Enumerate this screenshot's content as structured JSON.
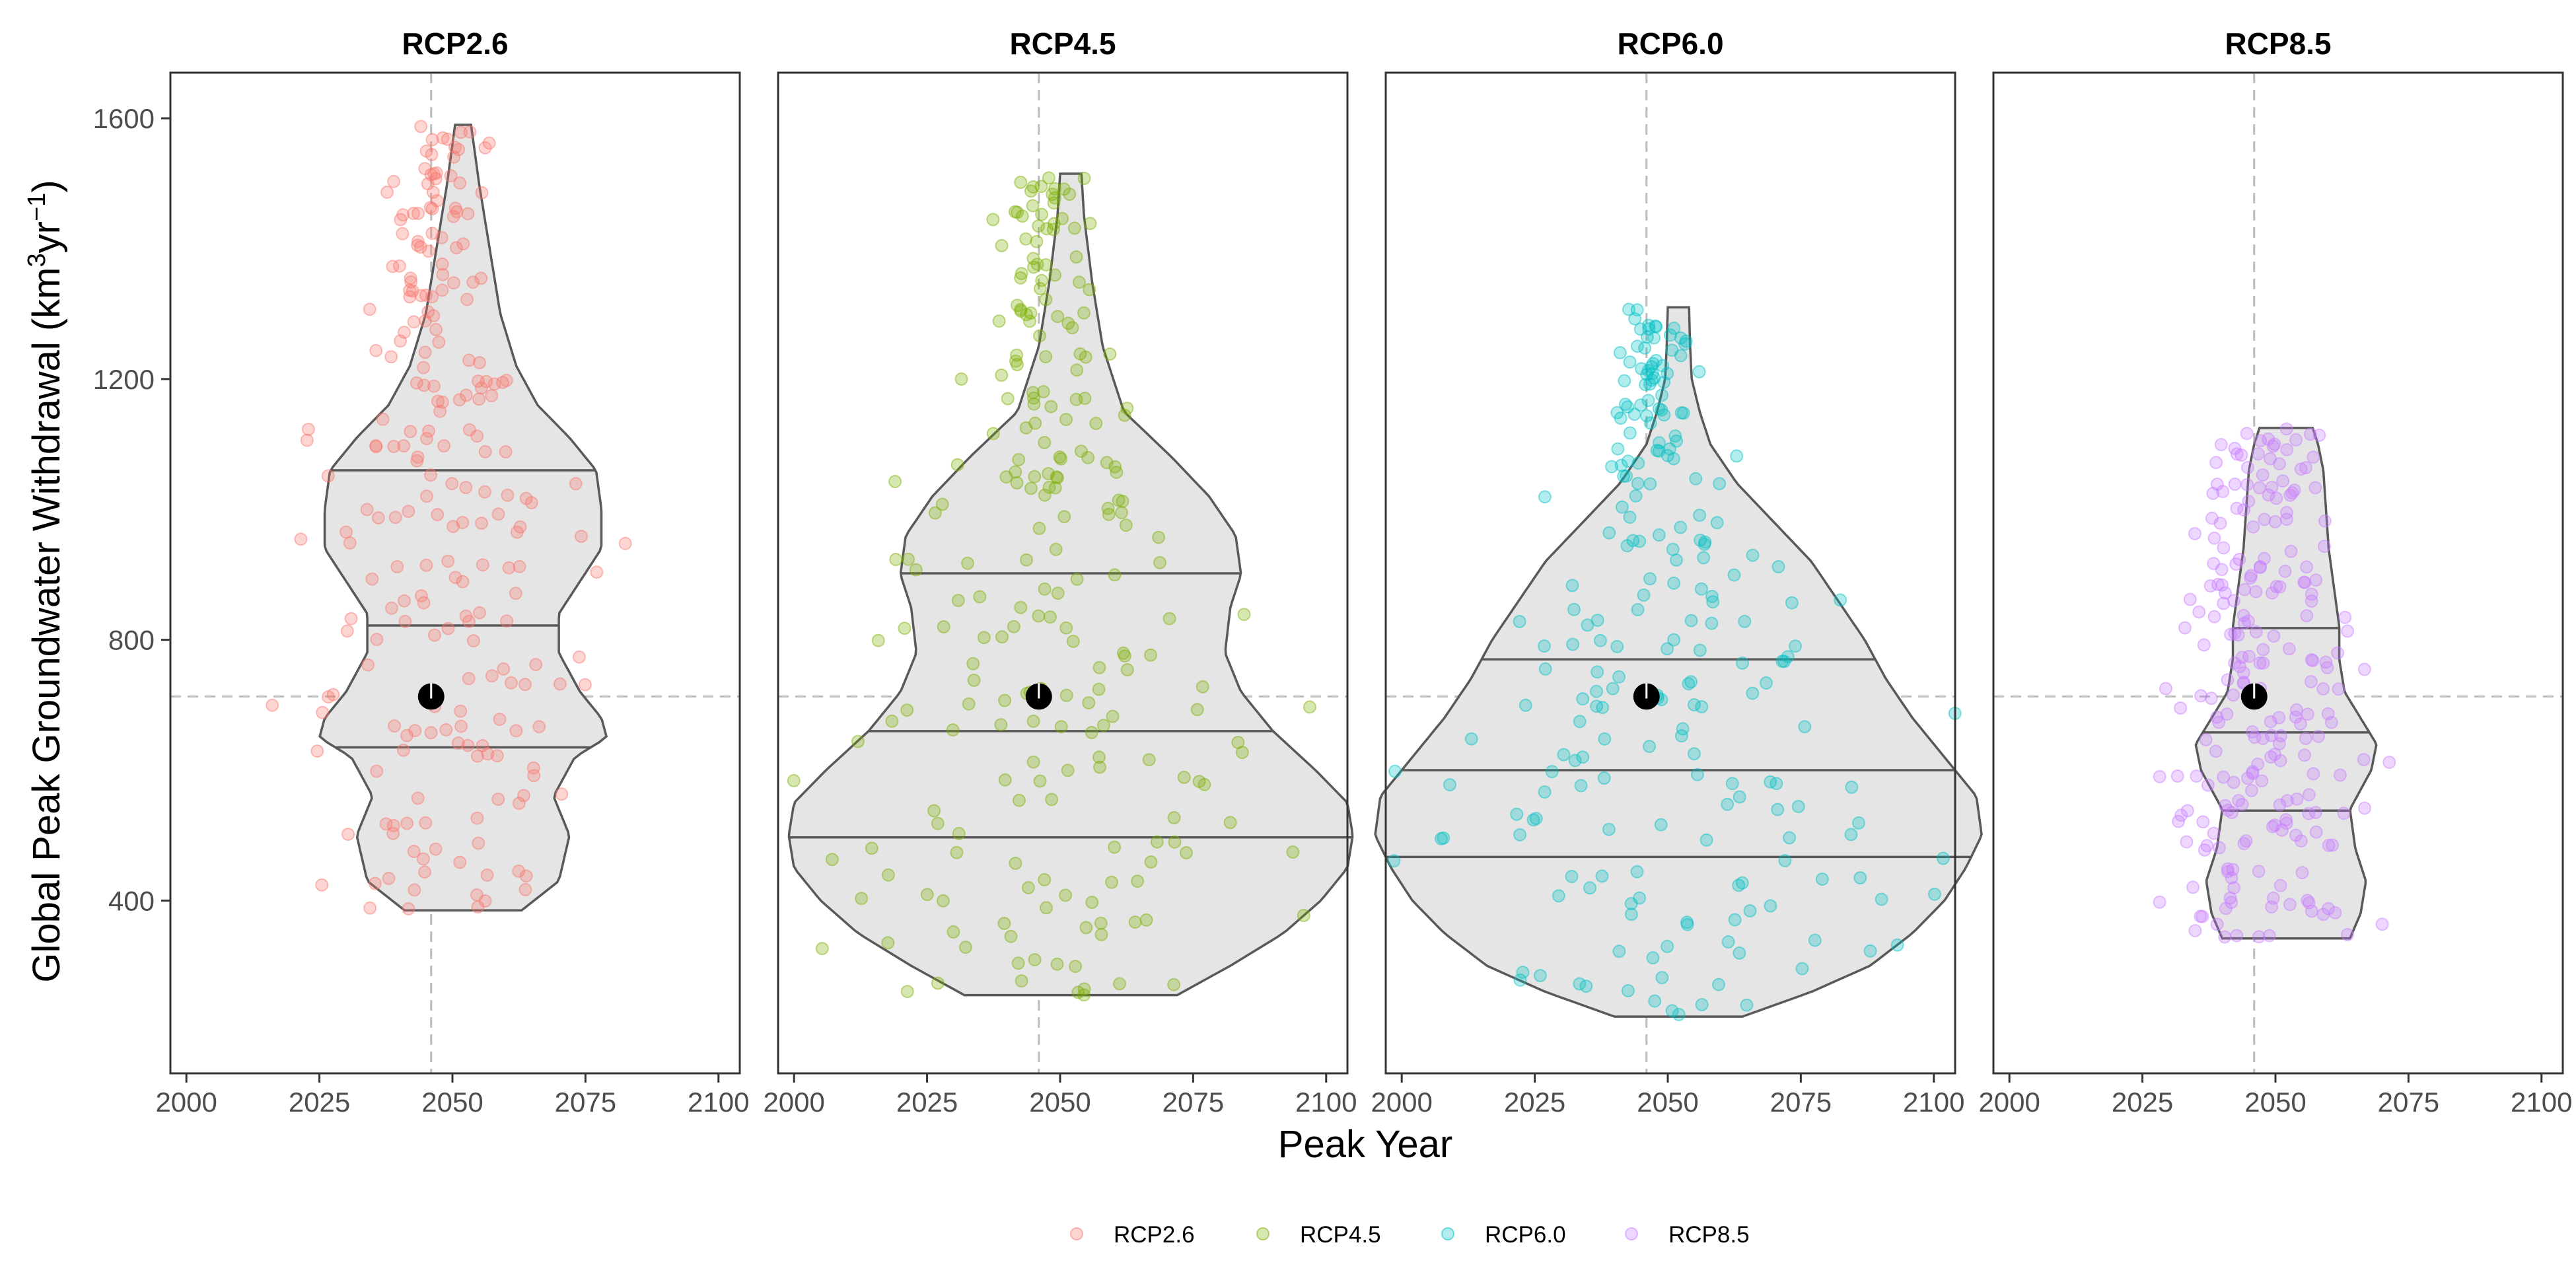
{
  "chart_data": {
    "type": "violin",
    "title": "",
    "xlabel": "Peak Year",
    "ylabel": "Global Peak Groundwater Withdrawal (km",
    "ylabel_sup1": "3",
    "ylabel_mid": "yr",
    "ylabel_sup2": "−1",
    "ylabel_end": ")",
    "xlim": [
      1997,
      2104
    ],
    "ylim": [
      135,
      1670
    ],
    "x_ticks": [
      2000,
      2025,
      2050,
      2075,
      2100
    ],
    "x_tick_labels": [
      "2000",
      "2025",
      "2050",
      "2075",
      "2100"
    ],
    "y_ticks": [
      400,
      800,
      1200,
      1600
    ],
    "y_tick_labels": [
      "400",
      "800",
      "1200",
      "1600"
    ],
    "reference_lines": {
      "x": 2046,
      "y": 713
    },
    "grid": false,
    "legend_position": "bottom",
    "marker_color": "#000000",
    "panels": [
      {
        "name": "RCP2.6",
        "color": "#F8766D",
        "quantiles": [
          635,
          822,
          1060
        ],
        "marker": {
          "x": 2046,
          "y": 713
        },
        "violin": [
          [
            385,
            11
          ],
          [
            430,
            18
          ],
          [
            500,
            20
          ],
          [
            560,
            17
          ],
          [
            620,
            21
          ],
          [
            650,
            27
          ],
          [
            680,
            26
          ],
          [
            720,
            22
          ],
          [
            780,
            18
          ],
          [
            840,
            18
          ],
          [
            890,
            22
          ],
          [
            940,
            26
          ],
          [
            1000,
            26
          ],
          [
            1060,
            25
          ],
          [
            1110,
            20
          ],
          [
            1160,
            14
          ],
          [
            1220,
            10
          ],
          [
            1300,
            7
          ],
          [
            1400,
            5
          ],
          [
            1500,
            3
          ],
          [
            1560,
            2
          ],
          [
            1590,
            1.5
          ]
        ]
      },
      {
        "name": "RCP4.5",
        "color": "#7CAE00",
        "quantiles": [
          497,
          660,
          902
        ],
        "marker": {
          "x": 2046,
          "y": 713
        },
        "violin": [
          [
            255,
            20
          ],
          [
            300,
            30
          ],
          [
            350,
            40
          ],
          [
            400,
            47
          ],
          [
            450,
            52
          ],
          [
            500,
            53
          ],
          [
            550,
            52
          ],
          [
            600,
            46
          ],
          [
            660,
            38
          ],
          [
            720,
            32
          ],
          [
            780,
            29
          ],
          [
            850,
            30
          ],
          [
            900,
            32
          ],
          [
            960,
            31
          ],
          [
            1020,
            26
          ],
          [
            1080,
            19
          ],
          [
            1150,
            10
          ],
          [
            1250,
            6
          ],
          [
            1350,
            4
          ],
          [
            1450,
            2.5
          ],
          [
            1515,
            2
          ]
        ]
      },
      {
        "name": "RCP6.0",
        "color": "#00BFC4",
        "quantiles": [
          467,
          600,
          770
        ],
        "marker": {
          "x": 2046,
          "y": 713
        },
        "violin": [
          [
            222,
            12
          ],
          [
            260,
            25
          ],
          [
            300,
            36
          ],
          [
            350,
            44
          ],
          [
            400,
            50
          ],
          [
            450,
            54
          ],
          [
            500,
            57
          ],
          [
            560,
            56
          ],
          [
            620,
            50
          ],
          [
            680,
            44
          ],
          [
            740,
            39
          ],
          [
            800,
            35
          ],
          [
            860,
            30
          ],
          [
            920,
            25
          ],
          [
            980,
            18
          ],
          [
            1040,
            11
          ],
          [
            1100,
            6
          ],
          [
            1150,
            4
          ],
          [
            1200,
            2.5
          ],
          [
            1250,
            2.2
          ],
          [
            1310,
            2
          ]
        ]
      },
      {
        "name": "RCP8.5",
        "color": "#C77CFF",
        "quantiles": [
          538,
          658,
          818
        ],
        "marker": {
          "x": 2046,
          "y": 713
        },
        "violin": [
          [
            342,
            12
          ],
          [
            380,
            14
          ],
          [
            430,
            15
          ],
          [
            480,
            13
          ],
          [
            540,
            12
          ],
          [
            600,
            16
          ],
          [
            640,
            17
          ],
          [
            680,
            14
          ],
          [
            720,
            11
          ],
          [
            770,
            10
          ],
          [
            820,
            10
          ],
          [
            880,
            9
          ],
          [
            940,
            8
          ],
          [
            1000,
            7.5
          ],
          [
            1060,
            7
          ],
          [
            1100,
            6
          ],
          [
            1125,
            5
          ]
        ]
      }
    ],
    "legend": [
      "RCP2.6",
      "RCP4.5",
      "RCP6.0",
      "RCP8.5"
    ]
  }
}
